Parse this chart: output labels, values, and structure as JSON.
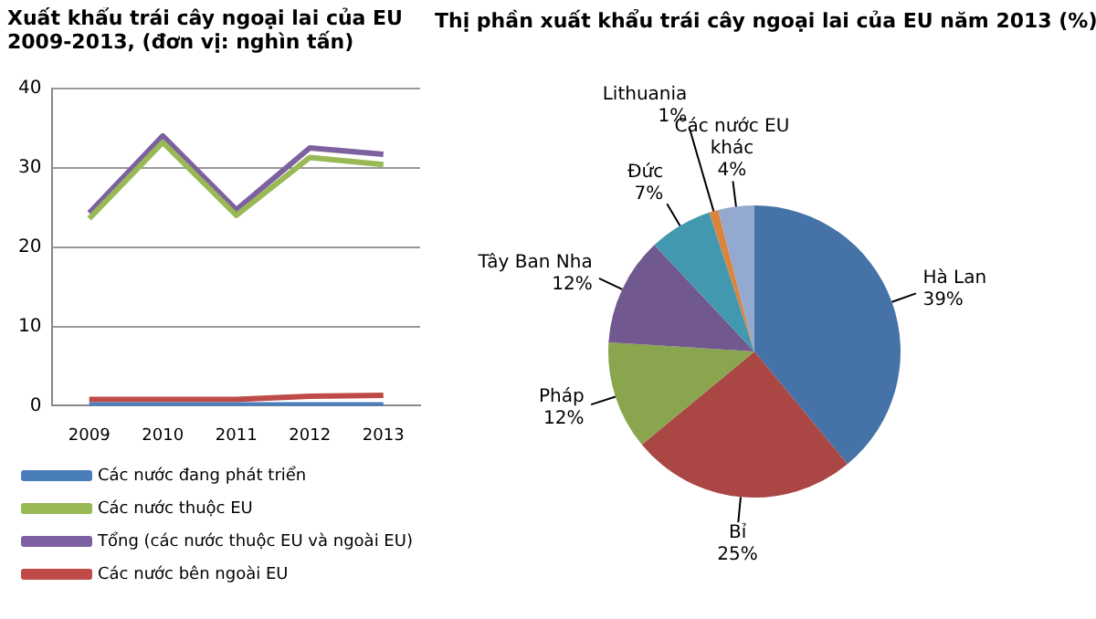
{
  "chart_data": [
    {
      "type": "line",
      "title": "Xuất khẩu trái cây ngoại lai của EU\n2009-2013, (đơn vị: nghìn tấn)",
      "categories": [
        "2009",
        "2010",
        "2011",
        "2012",
        "2013"
      ],
      "ylim": [
        0,
        40
      ],
      "yticks": [
        0,
        10,
        20,
        30,
        40
      ],
      "grid": "y",
      "legend": "bottom",
      "marker": "none",
      "line_style": "solid",
      "series": [
        {
          "name": "Các nước đang phát triển",
          "color": "#4a7ebb",
          "values": [
            0.1,
            0.1,
            0.1,
            0.1,
            0.1
          ]
        },
        {
          "name": "Các nước thuộc EU",
          "color": "#98b954",
          "values": [
            23.6,
            33.2,
            24.0,
            31.3,
            30.4
          ]
        },
        {
          "name": "Tổng (các nước thuộc EU và ngoài EU)",
          "color": "#7d60a0",
          "values": [
            24.3,
            34.0,
            24.7,
            32.5,
            31.7
          ]
        },
        {
          "name": "Các nước bên ngoài EU",
          "color": "#be4b48",
          "values": [
            0.8,
            0.8,
            0.8,
            1.2,
            1.3
          ]
        }
      ]
    },
    {
      "type": "pie",
      "title": "Thị phần xuất khẩu trái cây ngoại lai của EU năm 2013 (%)",
      "categories": [
        "Hà Lan",
        "Bỉ",
        "Pháp",
        "Tây Ban Nha",
        "Đức",
        "Lithuania",
        "Các nước EU khác"
      ],
      "values": [
        39,
        25,
        12,
        12,
        7,
        1,
        4
      ],
      "colors": [
        "#4572a7",
        "#aa4643",
        "#89a54e",
        "#71588f",
        "#4198af",
        "#db843d",
        "#93a9cf"
      ],
      "value_labels": [
        "39%",
        "25%",
        "12%",
        "12%",
        "7%",
        "1%",
        "4%"
      ],
      "legend": false
    }
  ]
}
